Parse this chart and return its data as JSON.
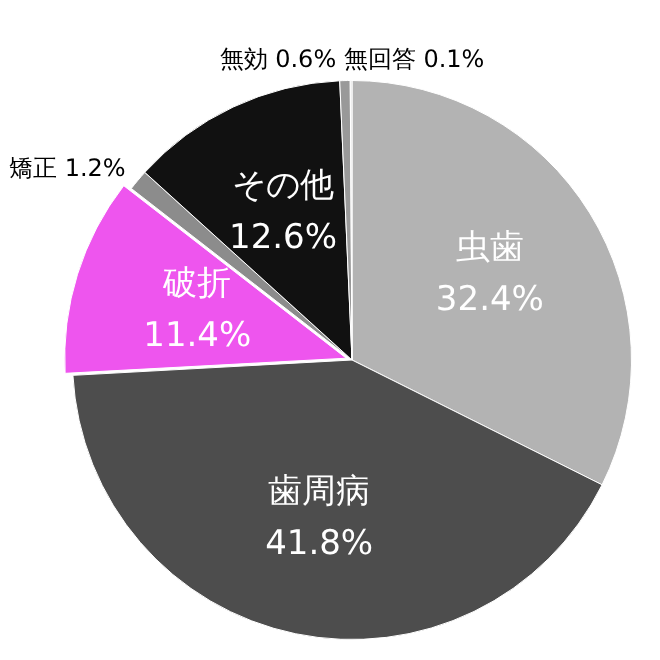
{
  "chart_data": {
    "type": "pie",
    "categories": [
      "虫歯",
      "歯周病",
      "破折",
      "矯正",
      "その他",
      "無効",
      "無回答"
    ],
    "values": [
      32.4,
      41.8,
      11.4,
      1.2,
      12.6,
      0.6,
      0.1
    ],
    "colors": [
      "#b3b3b3",
      "#4d4d4d",
      "#ee55ee",
      "#8c8c8c",
      "#111111",
      "#999999",
      "#dddddd"
    ],
    "value_labels": [
      "32.4%",
      "41.8%",
      "11.4%",
      "1.2%",
      "12.6%",
      "0.6%",
      "0.1%"
    ],
    "legend": false
  }
}
